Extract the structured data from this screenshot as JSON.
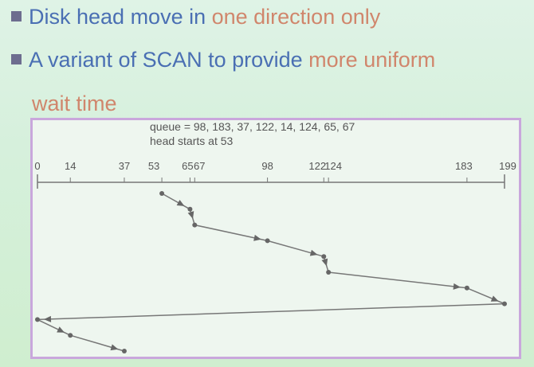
{
  "bullets": [
    {
      "text_main": "Disk head move in ",
      "text_highlight": "one direction only"
    },
    {
      "text_main": "A variant of SCAN to provide ",
      "text_highlight": "more uniform"
    }
  ],
  "bullet_continuation": "wait time",
  "figure": {
    "queue_text": "queue = 98, 183, 37, 122, 14, 124, 65, 67",
    "start_text": "head starts at 53",
    "axis_ticks": [
      "0",
      "14",
      "37",
      "53",
      "65",
      "67",
      "98",
      "122",
      "124",
      "183",
      "199"
    ],
    "path_order": [
      53,
      65,
      67,
      98,
      122,
      124,
      183,
      199,
      0,
      14,
      37
    ],
    "colors": {
      "line": "#777777",
      "arrow": "#666666",
      "border": "#c9a7dc"
    }
  }
}
